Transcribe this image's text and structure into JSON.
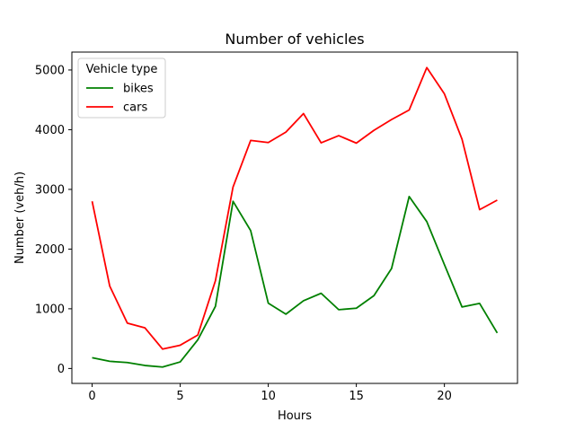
{
  "chart_data": {
    "type": "line",
    "title": "Number of vehicles",
    "xlabel": "Hours",
    "ylabel": "Number (veh/h)",
    "xlim": [
      -1.15,
      24.15
    ],
    "ylim": [
      -250,
      5300
    ],
    "xticks": [
      0,
      5,
      10,
      15,
      20
    ],
    "yticks": [
      0,
      1000,
      2000,
      3000,
      4000,
      5000
    ],
    "grid": false,
    "legend": {
      "title": "Vehicle type",
      "placement": "top-left"
    },
    "x": [
      0,
      1,
      2,
      3,
      4,
      5,
      6,
      7,
      8,
      9,
      10,
      11,
      12,
      13,
      14,
      15,
      16,
      17,
      18,
      19,
      20,
      21,
      22,
      23
    ],
    "series": [
      {
        "name": "bikes",
        "color": "#008000",
        "values": [
          180,
          120,
          100,
          50,
          25,
          110,
          480,
          1040,
          2800,
          2310,
          1095,
          910,
          1135,
          1260,
          985,
          1010,
          1220,
          1675,
          2880,
          2460,
          1740,
          1030,
          1090,
          595
        ]
      },
      {
        "name": "cars",
        "color": "#ff0000",
        "values": [
          2800,
          1380,
          760,
          680,
          325,
          390,
          560,
          1470,
          3040,
          3820,
          3785,
          3960,
          4270,
          3780,
          3900,
          3775,
          3990,
          4170,
          4330,
          5040,
          4600,
          3840,
          2660,
          2820
        ]
      }
    ]
  }
}
